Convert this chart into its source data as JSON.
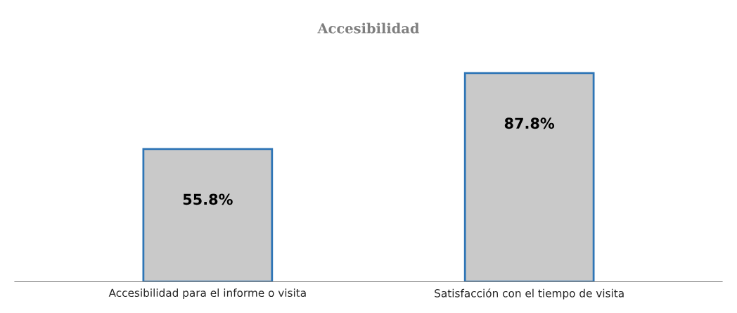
{
  "chart_data": {
    "type": "bar",
    "title": "Accesibilidad",
    "categories": [
      "Accesibilidad para el informe o visita",
      "Satisfacción con el tiempo de visita"
    ],
    "values": [
      55.8,
      87.8
    ],
    "color": "#c9c9c9",
    "value_labels": [
      "55.8%",
      "87.8%"
    ],
    "grid": false,
    "legend": false
  }
}
